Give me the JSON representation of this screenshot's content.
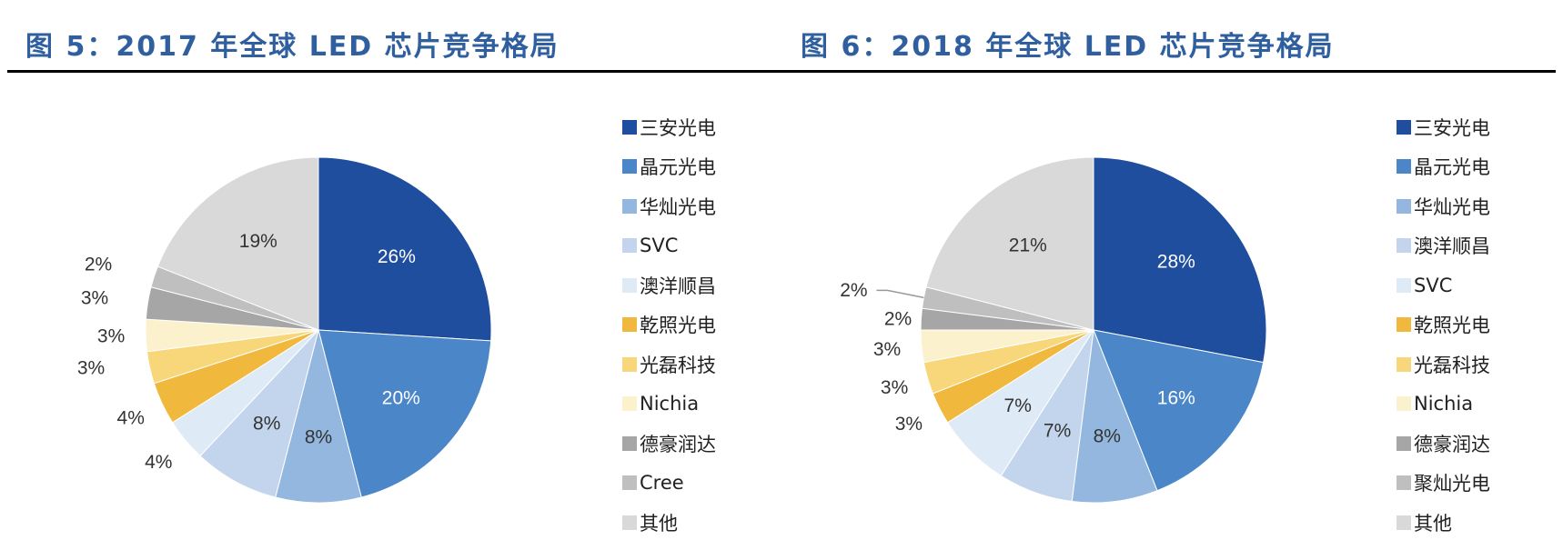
{
  "figures": [
    {
      "title": "图 5：2017 年全球 LED 芯片竞争格局"
    },
    {
      "title": "图 6：2018 年全球 LED 芯片竞争格局"
    }
  ],
  "chart_data": [
    {
      "type": "pie",
      "title": "图 5：2017 年全球 LED 芯片竞争格局",
      "start_angle": "12 o'clock, clockwise",
      "legend_position": "right",
      "slices": [
        {
          "label": "三安光电",
          "value": 26,
          "value_label": "26%",
          "color": "#1f4e9e",
          "label_color": "#ffffff"
        },
        {
          "label": "晶元光电",
          "value": 20,
          "value_label": "20%",
          "color": "#4a86c8",
          "label_color": "#ffffff"
        },
        {
          "label": "华灿光电",
          "value": 8,
          "value_label": "8%",
          "color": "#93b7de",
          "label_color": "#333333"
        },
        {
          "label": "SVC",
          "value": 8,
          "value_label": "8%",
          "color": "#c3d5ec",
          "label_color": "#333333"
        },
        {
          "label": "澳洋顺昌",
          "value": 4,
          "value_label": "4%",
          "color": "#deeaf6",
          "label_color": "#333333"
        },
        {
          "label": "乾照光电",
          "value": 4,
          "value_label": "4%",
          "color": "#f0b93e",
          "label_color": "#333333"
        },
        {
          "label": "光磊科技",
          "value": 3,
          "value_label": "3%",
          "color": "#f8d77a",
          "label_color": "#333333"
        },
        {
          "label": "Nichia",
          "value": 3,
          "value_label": "3%",
          "color": "#fbf1cc",
          "label_color": "#333333"
        },
        {
          "label": "德豪润达",
          "value": 3,
          "value_label": "3%",
          "color": "#a6a6a6",
          "label_color": "#333333"
        },
        {
          "label": "Cree",
          "value": 2,
          "value_label": "2%",
          "color": "#bfbfbf",
          "label_color": "#333333"
        },
        {
          "label": "其他",
          "value": 19,
          "value_label": "19%",
          "color": "#d9d9d9",
          "label_color": "#333333"
        }
      ]
    },
    {
      "type": "pie",
      "title": "图 6：2018 年全球 LED 芯片竞争格局",
      "start_angle": "12 o'clock, clockwise",
      "legend_position": "right",
      "slices": [
        {
          "label": "三安光电",
          "value": 28,
          "value_label": "28%",
          "color": "#1f4e9e",
          "label_color": "#ffffff"
        },
        {
          "label": "晶元光电",
          "value": 16,
          "value_label": "16%",
          "color": "#4a86c8",
          "label_color": "#ffffff"
        },
        {
          "label": "华灿光电",
          "value": 8,
          "value_label": "8%",
          "color": "#93b7de",
          "label_color": "#333333"
        },
        {
          "label": "澳洋顺昌",
          "value": 7,
          "value_label": "7%",
          "color": "#c3d5ec",
          "label_color": "#333333"
        },
        {
          "label": "SVC",
          "value": 7,
          "value_label": "7%",
          "color": "#deeaf6",
          "label_color": "#333333"
        },
        {
          "label": "乾照光电",
          "value": 3,
          "value_label": "3%",
          "color": "#f0b93e",
          "label_color": "#333333"
        },
        {
          "label": "光磊科技",
          "value": 3,
          "value_label": "3%",
          "color": "#f8d77a",
          "label_color": "#333333"
        },
        {
          "label": "Nichia",
          "value": 3,
          "value_label": "3%",
          "color": "#fbf1cc",
          "label_color": "#333333"
        },
        {
          "label": "德豪润达",
          "value": 2,
          "value_label": "2%",
          "color": "#a6a6a6",
          "label_color": "#333333"
        },
        {
          "label": "聚灿光电",
          "value": 2,
          "value_label": "2%",
          "color": "#bfbfbf",
          "label_color": "#333333"
        },
        {
          "label": "其他",
          "value": 21,
          "value_label": "21%",
          "color": "#d9d9d9",
          "label_color": "#333333"
        }
      ]
    }
  ]
}
